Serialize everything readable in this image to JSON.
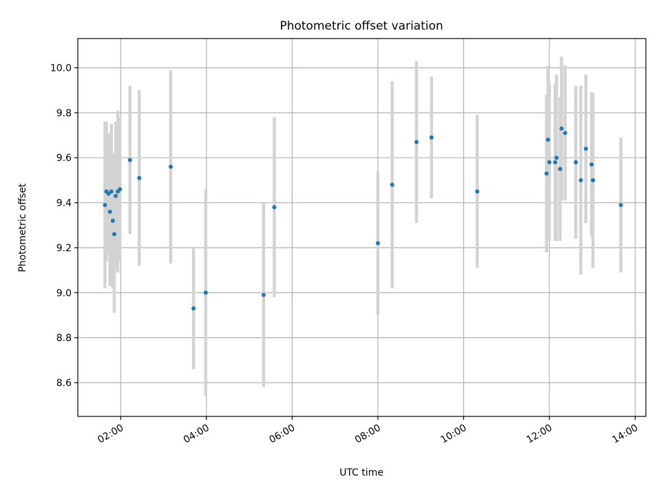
{
  "chart_data": {
    "type": "scatter",
    "title": "Photometric offset variation",
    "xlabel": "UTC time",
    "ylabel": "Photometric offset",
    "x_unit": "UTC time (HH:MM)",
    "xlim": [
      "01:00",
      "14:15"
    ],
    "ylim": [
      8.45,
      10.13
    ],
    "xticks": [
      "02:00",
      "04:00",
      "06:00",
      "08:00",
      "10:00",
      "12:00",
      "14:00"
    ],
    "yticks": [
      8.6,
      8.8,
      9.0,
      9.2,
      9.4,
      9.6,
      9.8,
      10.0
    ],
    "grid": true,
    "legend": "none",
    "colors": {
      "point": "#1f77b4",
      "errorbar": "#d3d3d3",
      "grid": "#b0b0b0",
      "axes": "#000000"
    },
    "series": [
      {
        "values": [
          {
            "x": "01:38",
            "y": 9.39,
            "yerr": 0.37
          },
          {
            "x": "01:40",
            "y": 9.45,
            "yerr": 0.31
          },
          {
            "x": "01:43",
            "y": 9.44,
            "yerr": 0.27
          },
          {
            "x": "01:45",
            "y": 9.36,
            "yerr": 0.33
          },
          {
            "x": "01:47",
            "y": 9.45,
            "yerr": 0.3
          },
          {
            "x": "01:49",
            "y": 9.32,
            "yerr": 0.3
          },
          {
            "x": "01:51",
            "y": 9.26,
            "yerr": 0.35
          },
          {
            "x": "01:53",
            "y": 9.43,
            "yerr": 0.33
          },
          {
            "x": "01:56",
            "y": 9.45,
            "yerr": 0.36
          },
          {
            "x": "01:59",
            "y": 9.46,
            "yerr": 0.32
          },
          {
            "x": "02:13",
            "y": 9.59,
            "yerr": 0.33
          },
          {
            "x": "02:26",
            "y": 9.51,
            "yerr": 0.39
          },
          {
            "x": "03:10",
            "y": 9.56,
            "yerr": 0.43
          },
          {
            "x": "03:42",
            "y": 8.93,
            "yerr": 0.27
          },
          {
            "x": "03:59",
            "y": 9.0,
            "yerr": 0.46
          },
          {
            "x": "05:20",
            "y": 8.99,
            "yerr": 0.41
          },
          {
            "x": "05:35",
            "y": 9.38,
            "yerr": 0.4
          },
          {
            "x": "08:00",
            "y": 9.22,
            "yerr": 0.32
          },
          {
            "x": "08:20",
            "y": 9.48,
            "yerr": 0.46
          },
          {
            "x": "08:54",
            "y": 9.67,
            "yerr": 0.36
          },
          {
            "x": "09:15",
            "y": 9.69,
            "yerr": 0.27
          },
          {
            "x": "10:19",
            "y": 9.45,
            "yerr": 0.34
          },
          {
            "x": "11:56",
            "y": 9.53,
            "yerr": 0.35
          },
          {
            "x": "11:58",
            "y": 9.68,
            "yerr": 0.33
          },
          {
            "x": "12:00",
            "y": 9.58,
            "yerr": 0.35
          },
          {
            "x": "12:08",
            "y": 9.58,
            "yerr": 0.35
          },
          {
            "x": "12:10",
            "y": 9.6,
            "yerr": 0.37
          },
          {
            "x": "12:15",
            "y": 9.55,
            "yerr": 0.32
          },
          {
            "x": "12:17",
            "y": 9.73,
            "yerr": 0.32
          },
          {
            "x": "12:22",
            "y": 9.71,
            "yerr": 0.3
          },
          {
            "x": "12:37",
            "y": 9.58,
            "yerr": 0.34
          },
          {
            "x": "12:44",
            "y": 9.5,
            "yerr": 0.42
          },
          {
            "x": "12:51",
            "y": 9.64,
            "yerr": 0.33
          },
          {
            "x": "12:59",
            "y": 9.57,
            "yerr": 0.32
          },
          {
            "x": "13:01",
            "y": 9.5,
            "yerr": 0.39
          },
          {
            "x": "13:40",
            "y": 9.39,
            "yerr": 0.3
          }
        ]
      }
    ]
  }
}
